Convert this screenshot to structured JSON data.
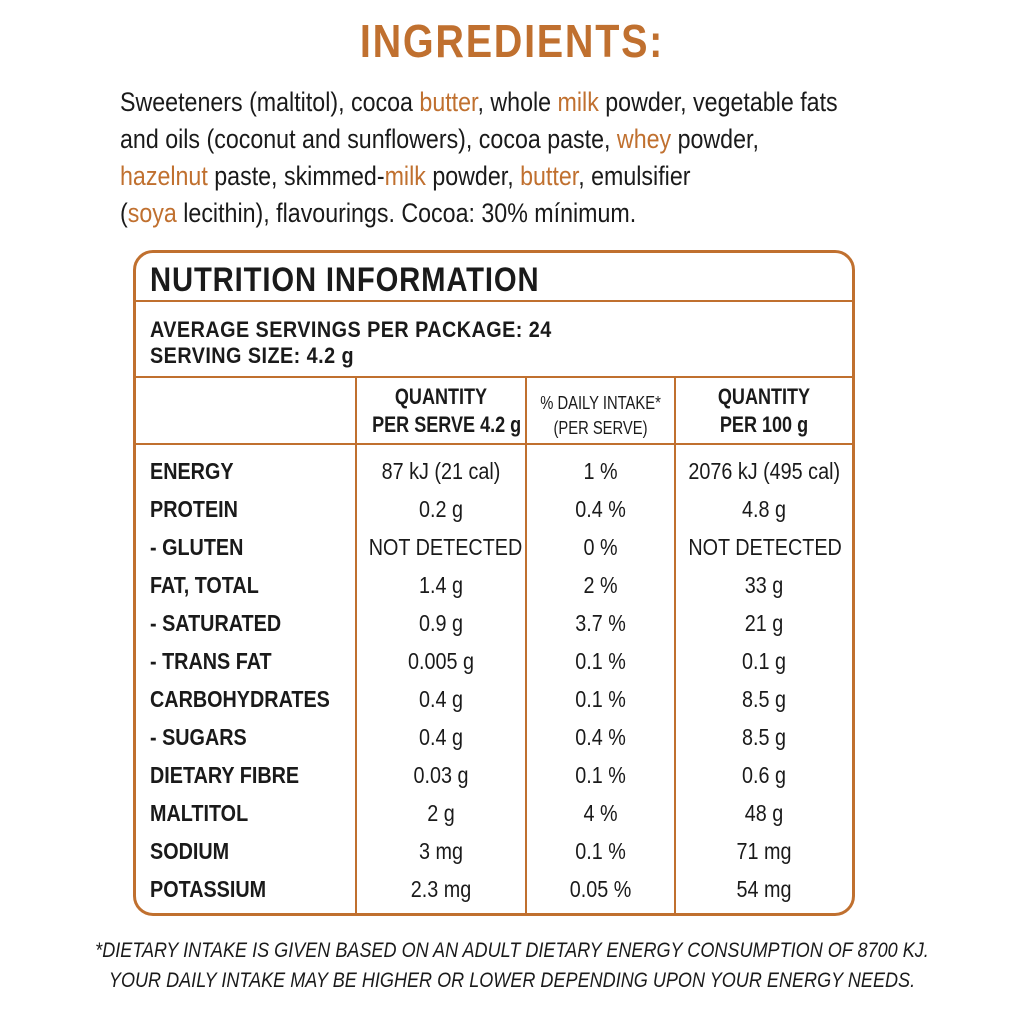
{
  "colors": {
    "accent": "#c0702f",
    "text": "#1a1a1a"
  },
  "ingredients": {
    "title": "INGREDIENTS:",
    "lines": [
      [
        {
          "t": "Sweeteners (maltitol), cocoa ",
          "hl": false
        },
        {
          "t": "butter",
          "hl": true
        },
        {
          "t": ", whole ",
          "hl": false
        },
        {
          "t": "milk",
          "hl": true
        },
        {
          "t": " powder, vegetable fats",
          "hl": false
        }
      ],
      [
        {
          "t": "and oils (coconut and sunflowers), cocoa paste, ",
          "hl": false
        },
        {
          "t": "whey",
          "hl": true
        },
        {
          "t": " powder,",
          "hl": false
        }
      ],
      [
        {
          "t": "hazelnut",
          "hl": true
        },
        {
          "t": " paste, skimmed-",
          "hl": false
        },
        {
          "t": "milk",
          "hl": true
        },
        {
          "t": " powder, ",
          "hl": false
        },
        {
          "t": "butter",
          "hl": true
        },
        {
          "t": ", emulsifier",
          "hl": false
        }
      ],
      [
        {
          "t": "(",
          "hl": false
        },
        {
          "t": "soya",
          "hl": true
        },
        {
          "t": " lecithin), flavourings. Cocoa: 30% mínimum.",
          "hl": false
        }
      ]
    ]
  },
  "nutrition": {
    "title": "NUTRITION INFORMATION",
    "servings_per_package": "AVERAGE SERVINGS PER PACKAGE: 24",
    "serving_size": "SERVING SIZE: 4.2 g",
    "columns": [
      {
        "line1": "QUANTITY",
        "line2": "PER SERVE 4.2 g"
      },
      {
        "line1": "% DAILY INTAKE*",
        "line2": "(PER SERVE)"
      },
      {
        "line1": "QUANTITY",
        "line2": "PER 100 g"
      }
    ],
    "rows": [
      {
        "label": "ENERGY",
        "per_serve": "87 kJ (21 cal)",
        "daily": "1 %",
        "per_100g": "2076 kJ (495 cal)"
      },
      {
        "label": "PROTEIN",
        "per_serve": "0.2 g",
        "daily": "0.4 %",
        "per_100g": "4.8 g"
      },
      {
        "label": "- GLUTEN",
        "per_serve": "NOT DETECTED",
        "daily": "0 %",
        "per_100g": "NOT DETECTED"
      },
      {
        "label": "FAT, TOTAL",
        "per_serve": "1.4 g",
        "daily": "2 %",
        "per_100g": "33 g"
      },
      {
        "label": "- SATURATED",
        "per_serve": "0.9 g",
        "daily": "3.7 %",
        "per_100g": "21 g"
      },
      {
        "label": "- TRANS FAT",
        "per_serve": "0.005 g",
        "daily": "0.1 %",
        "per_100g": "0.1 g"
      },
      {
        "label": "CARBOHYDRATES",
        "per_serve": "0.4 g",
        "daily": "0.1 %",
        "per_100g": "8.5 g"
      },
      {
        "label": "- SUGARS",
        "per_serve": "0.4 g",
        "daily": "0.4 %",
        "per_100g": "8.5 g"
      },
      {
        "label": "DIETARY FIBRE",
        "per_serve": "0.03 g",
        "daily": "0.1 %",
        "per_100g": "0.6 g"
      },
      {
        "label": "MALTITOL",
        "per_serve": "2 g",
        "daily": "4 %",
        "per_100g": "48 g"
      },
      {
        "label": "SODIUM",
        "per_serve": "3 mg",
        "daily": "0.1 %",
        "per_100g": "71 mg"
      },
      {
        "label": "POTASSIUM",
        "per_serve": "2.3 mg",
        "daily": "0.05 %",
        "per_100g": "54 mg"
      }
    ]
  },
  "footnote": {
    "line1": "*DIETARY INTAKE IS GIVEN BASED ON AN ADULT DIETARY ENERGY CONSUMPTION OF 8700 KJ.",
    "line2": "YOUR DAILY INTAKE MAY BE HIGHER OR LOWER DEPENDING UPON YOUR ENERGY NEEDS."
  }
}
